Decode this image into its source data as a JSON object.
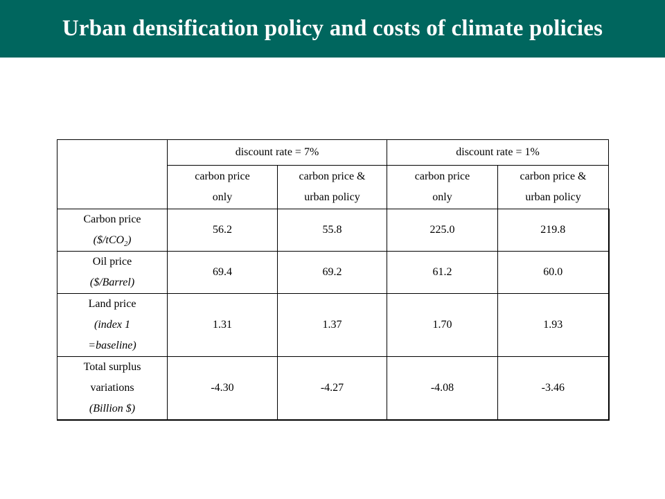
{
  "title": "Urban densification policy and costs of climate policies",
  "table": {
    "group_headers": [
      {
        "label": "discount rate = 7%"
      },
      {
        "label": "discount rate = 1%"
      }
    ],
    "sub_headers": [
      {
        "line1": "carbon price",
        "line2": "only"
      },
      {
        "line1": "carbon price &",
        "line2": "urban policy"
      },
      {
        "line1": "carbon price",
        "line2": "only"
      },
      {
        "line1": "carbon price &",
        "line2": "urban policy"
      }
    ],
    "rows": [
      {
        "label": "Carbon price",
        "unit_prefix": "($/tCO",
        "unit_sub": "2",
        "unit_suffix": ")",
        "values": [
          "56.2",
          "55.8",
          "225.0",
          "219.8"
        ]
      },
      {
        "label": "Oil price",
        "unit": "($/Barrel)",
        "values": [
          "69.4",
          "69.2",
          "61.2",
          "60.0"
        ]
      },
      {
        "label": "Land price",
        "unit_line1": "(index 1",
        "unit_line2": "=baseline)",
        "values": [
          "1.31",
          "1.37",
          "1.70",
          "1.93"
        ]
      },
      {
        "label_line1": "Total surplus",
        "label_line2": "variations",
        "unit": "(Billion $)",
        "values": [
          "-4.30",
          "-4.27",
          "-4.08",
          "-3.46"
        ]
      }
    ]
  }
}
